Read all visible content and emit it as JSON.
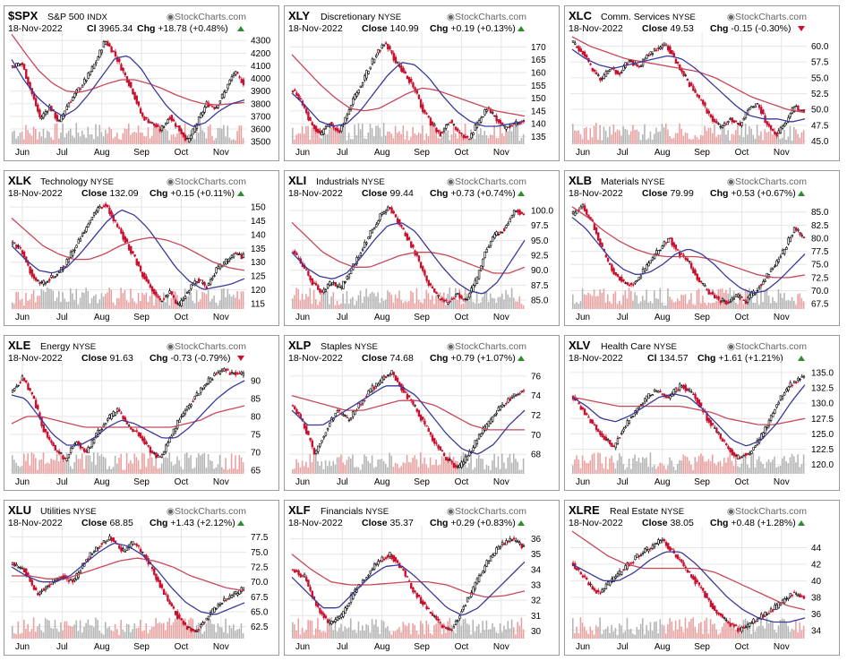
{
  "brand": "StockCharts.com",
  "colors": {
    "up_candle": "#000000",
    "down_candle": "#c8102e",
    "ma_fast": "#3a3a9a",
    "ma_slow": "#c8485a",
    "volume_up": "#b4b4b4",
    "volume_down": "#e8a0a0",
    "gridline": "#e6e6e6",
    "change_up": "#2e8b2e",
    "change_down": "#c8102e"
  },
  "chart_data": [
    {
      "type": "candlestick",
      "symbol": "$SPX",
      "name": "S&P 500",
      "exchange": "INDX",
      "date": "18-Nov-2022",
      "close_label": "Cl",
      "close": "3965.34",
      "change": "+18.78 (+0.48%)",
      "direction": "up",
      "x_months": [
        "Jun",
        "Jul",
        "Aug",
        "Sep",
        "Oct",
        "Nov"
      ],
      "y_ticks": [
        "4300",
        "4200",
        "4100",
        "4000",
        "3900",
        "3800",
        "3700",
        "3600",
        "3500"
      ],
      "ylim": [
        3480,
        4330
      ],
      "price_path": [
        4100,
        4120,
        3900,
        3680,
        3780,
        3650,
        3800,
        3900,
        4000,
        4130,
        4300,
        4200,
        4050,
        3900,
        3700,
        3650,
        3590,
        3700,
        3600,
        3500,
        3650,
        3800,
        3770,
        3900,
        4050,
        3965
      ],
      "ma_fast_path": [
        4150,
        3980,
        3850,
        3760,
        3700,
        3760,
        3880,
        4020,
        4160,
        4180,
        4080,
        3920,
        3780,
        3680,
        3620,
        3650,
        3740,
        3800,
        3830
      ],
      "ma_slow_path": [
        4350,
        4200,
        4060,
        3960,
        3900,
        3890,
        3920,
        3960,
        3990,
        3990,
        3960,
        3920,
        3870,
        3830,
        3800,
        3790,
        3800,
        3810
      ]
    },
    {
      "type": "candlestick",
      "symbol": "XLY",
      "name": "Discretionary",
      "exchange": "NYSE",
      "date": "18-Nov-2022",
      "close_label": "Close",
      "close": "140.99",
      "change": "+0.19 (+0.13%)",
      "direction": "up",
      "x_months": [
        "Jun",
        "Jul",
        "Aug",
        "Sep",
        "Oct",
        "Nov"
      ],
      "y_ticks": [
        "170",
        "165",
        "160",
        "155",
        "150",
        "145",
        "140",
        "135"
      ],
      "ylim": [
        132,
        174
      ],
      "price_path": [
        153,
        148,
        140,
        136,
        140,
        137,
        145,
        153,
        160,
        167,
        172,
        165,
        160,
        155,
        146,
        140,
        136,
        141,
        136,
        134,
        140,
        146,
        142,
        138,
        140,
        141
      ],
      "ma_fast_path": [
        152,
        147,
        141,
        139,
        140,
        145,
        152,
        159,
        164,
        163,
        158,
        151,
        145,
        141,
        139,
        139,
        140,
        141
      ],
      "ma_slow_path": [
        167,
        161,
        155,
        150,
        146,
        145,
        146,
        149,
        152,
        154,
        153,
        151,
        149,
        147,
        145,
        144,
        143
      ]
    },
    {
      "type": "candlestick",
      "symbol": "XLC",
      "name": "Comm. Services",
      "exchange": "NYSE",
      "date": "18-Nov-2022",
      "close_label": "Close",
      "close": "49.53",
      "change": "-0.15 (-0.30%)",
      "direction": "down",
      "x_months": [
        "Jun",
        "Jul",
        "Aug",
        "Sep",
        "Oct",
        "Nov"
      ],
      "y_ticks": [
        "60.0",
        "57.5",
        "55.0",
        "52.5",
        "50.0",
        "47.5",
        "45.0"
      ],
      "ylim": [
        44.5,
        61.5
      ],
      "price_path": [
        60.5,
        59.0,
        56.5,
        54.5,
        56.5,
        55.5,
        58.0,
        56.5,
        58.5,
        59.5,
        60.5,
        58.0,
        55.5,
        53.0,
        51.0,
        48.5,
        47.0,
        48.5,
        47.5,
        50.0,
        51.0,
        47.5,
        46.0,
        48.0,
        50.5,
        49.5
      ],
      "ma_fast_path": [
        59.5,
        58.0,
        57.0,
        56.5,
        57.0,
        57.5,
        58.0,
        58.5,
        58.0,
        56.5,
        54.5,
        52.5,
        50.5,
        49.0,
        48.5,
        48.5,
        48.0,
        48.5
      ],
      "ma_slow_path": [
        61.5,
        60.0,
        59.0,
        58.0,
        57.5,
        57.0,
        56.5,
        56.0,
        55.0,
        53.5,
        52.0,
        51.0,
        50.0,
        49.5
      ]
    },
    {
      "type": "candlestick",
      "symbol": "XLK",
      "name": "Technology",
      "exchange": "NYSE",
      "date": "18-Nov-2022",
      "close_label": "Close",
      "close": "132.09",
      "change": "+0.15 (+0.11%)",
      "direction": "up",
      "x_months": [
        "Jun",
        "Jul",
        "Aug",
        "Sep",
        "Oct",
        "Nov"
      ],
      "y_ticks": [
        "150",
        "145",
        "140",
        "135",
        "130",
        "125",
        "120",
        "115"
      ],
      "ylim": [
        113,
        152
      ],
      "price_path": [
        137,
        134,
        126,
        122,
        124,
        126,
        131,
        137,
        143,
        149,
        151,
        145,
        139,
        133,
        126,
        121,
        116,
        119,
        114,
        120,
        124,
        121,
        127,
        130,
        133,
        132
      ],
      "ma_fast_path": [
        136,
        131,
        127,
        126,
        128,
        133,
        139,
        145,
        149,
        147,
        142,
        135,
        128,
        123,
        120,
        121,
        122,
        124
      ],
      "ma_slow_path": [
        146,
        141,
        136,
        133,
        131,
        131,
        133,
        136,
        138,
        139,
        138,
        136,
        133,
        130,
        128,
        127
      ]
    },
    {
      "type": "candlestick",
      "symbol": "XLI",
      "name": "Industrials",
      "exchange": "NYSE",
      "date": "18-Nov-2022",
      "close_label": "Close",
      "close": "99.44",
      "change": "+0.73 (+0.74%)",
      "direction": "up",
      "x_months": [
        "Jun",
        "Jul",
        "Aug",
        "Sep",
        "Oct",
        "Nov"
      ],
      "y_ticks": [
        "100.0",
        "97.5",
        "95.0",
        "92.5",
        "90.0",
        "87.5",
        "85.0"
      ],
      "ylim": [
        83.5,
        101.5
      ],
      "price_path": [
        93.0,
        91.0,
        88.0,
        86.0,
        88.0,
        87.0,
        90.0,
        93.0,
        96.0,
        99.0,
        100.5,
        98.0,
        95.0,
        92.0,
        88.0,
        85.5,
        84.5,
        86.0,
        85.0,
        88.0,
        93.0,
        96.0,
        97.0,
        100.0,
        99.5
      ],
      "ma_fast_path": [
        93.0,
        90.5,
        89.0,
        88.5,
        89.5,
        92.0,
        95.0,
        97.5,
        98.0,
        96.5,
        93.5,
        90.5,
        88.0,
        86.5,
        86.0,
        88.0,
        91.5,
        95.0
      ],
      "ma_slow_path": [
        98.0,
        95.5,
        93.0,
        91.5,
        90.5,
        90.5,
        91.5,
        92.5,
        93.0,
        93.0,
        92.5,
        91.5,
        90.5,
        89.5,
        89.5,
        90.5
      ]
    },
    {
      "type": "candlestick",
      "symbol": "XLB",
      "name": "Materials",
      "exchange": "NYSE",
      "date": "18-Nov-2022",
      "close_label": "Close",
      "close": "79.99",
      "change": "+0.53 (+0.67%)",
      "direction": "up",
      "x_months": [
        "Jun",
        "Jul",
        "Aug",
        "Sep",
        "Oct",
        "Nov"
      ],
      "y_ticks": [
        "85.0",
        "82.5",
        "80.0",
        "77.5",
        "75.0",
        "72.5",
        "70.0",
        "67.5"
      ],
      "ylim": [
        66.5,
        87.0
      ],
      "price_path": [
        84.5,
        86.0,
        83.0,
        78.0,
        74.0,
        72.0,
        71.0,
        73.0,
        75.5,
        78.0,
        80.0,
        77.0,
        75.5,
        72.0,
        70.0,
        68.5,
        67.5,
        69.0,
        68.0,
        70.0,
        72.5,
        75.0,
        78.0,
        82.0,
        80.0
      ],
      "ma_fast_path": [
        84.0,
        82.0,
        79.0,
        76.0,
        74.0,
        73.0,
        73.5,
        75.0,
        77.0,
        78.0,
        77.0,
        75.0,
        72.5,
        70.5,
        69.5,
        70.0,
        72.0,
        74.5,
        77.0
      ],
      "ma_slow_path": [
        86.0,
        84.0,
        81.5,
        79.5,
        78.0,
        77.0,
        76.5,
        76.5,
        76.5,
        76.0,
        75.0,
        74.0,
        73.0,
        72.5,
        72.5,
        73.0
      ]
    },
    {
      "type": "candlestick",
      "symbol": "XLE",
      "name": "Energy",
      "exchange": "NYSE",
      "date": "18-Nov-2022",
      "close_label": "Close",
      "close": "91.63",
      "change": "-0.73 (-0.79%)",
      "direction": "down",
      "x_months": [
        "Jun",
        "Jul",
        "Aug",
        "Sep",
        "Oct",
        "Nov"
      ],
      "y_ticks": [
        "90",
        "85",
        "80",
        "75",
        "70",
        "65"
      ],
      "ylim": [
        64,
        94
      ],
      "price_path": [
        87,
        91,
        85,
        76,
        71,
        68,
        73,
        70,
        75,
        79,
        82,
        77,
        75,
        71,
        68,
        74,
        80,
        84,
        88,
        91,
        93,
        92,
        91.6
      ],
      "ma_fast_path": [
        86,
        85,
        80,
        75,
        72,
        72,
        74,
        77,
        79,
        78,
        76,
        74,
        74,
        77,
        81,
        85,
        88,
        90
      ],
      "ma_slow_path": [
        78,
        80,
        80,
        79,
        78,
        77,
        77,
        77,
        77,
        77,
        77,
        77,
        78,
        79,
        81,
        82,
        83
      ]
    },
    {
      "type": "candlestick",
      "symbol": "XLP",
      "name": "Staples",
      "exchange": "NYSE",
      "date": "18-Nov-2022",
      "close_label": "Close",
      "close": "74.68",
      "change": "+0.79 (+1.07%)",
      "direction": "up",
      "x_months": [
        "Jun",
        "Jul",
        "Aug",
        "Sep",
        "Oct",
        "Nov"
      ],
      "y_ticks": [
        "76",
        "74",
        "72",
        "70",
        "68"
      ],
      "ylim": [
        66.0,
        77.0
      ],
      "price_path": [
        73.0,
        71.0,
        68.0,
        70.5,
        72.5,
        71.5,
        73.0,
        74.5,
        75.5,
        76.5,
        74.5,
        73.0,
        71.0,
        69.0,
        67.5,
        66.5,
        68.0,
        70.0,
        71.5,
        73.0,
        74.0,
        74.7
      ],
      "ma_fast_path": [
        72.5,
        71.0,
        71.0,
        72.0,
        73.0,
        74.0,
        75.0,
        75.0,
        74.0,
        72.0,
        70.0,
        68.5,
        68.0,
        69.0,
        71.0,
        72.5
      ],
      "ma_slow_path": [
        74.0,
        73.5,
        73.0,
        72.5,
        72.5,
        73.0,
        73.5,
        73.5,
        73.0,
        72.0,
        71.0,
        70.5,
        70.5,
        70.5
      ]
    },
    {
      "type": "candlestick",
      "symbol": "XLV",
      "name": "Health Care",
      "exchange": "NYSE",
      "date": "18-Nov-2022",
      "close_label": "Cl",
      "close": "134.57",
      "change": "+1.61 (+1.21%)",
      "direction": "up",
      "x_months": [
        "Jun",
        "Jul",
        "Aug",
        "Sep",
        "Oct",
        "Nov"
      ],
      "y_ticks": [
        "135.0",
        "132.5",
        "130.0",
        "127.5",
        "125.0",
        "122.5",
        "120.0"
      ],
      "ylim": [
        118.5,
        136.0
      ],
      "price_path": [
        131.0,
        128.0,
        125.0,
        123.0,
        127.0,
        130.0,
        132.0,
        131.0,
        133.0,
        131.0,
        127.0,
        124.0,
        121.0,
        122.0,
        125.0,
        130.0,
        133.0,
        134.5
      ],
      "ma_fast_path": [
        131.0,
        129.5,
        127.5,
        127.0,
        128.0,
        129.5,
        131.0,
        131.5,
        131.0,
        129.0,
        126.5,
        124.0,
        123.0,
        124.0,
        126.5,
        130.0,
        133.0
      ],
      "ma_slow_path": [
        131.0,
        130.5,
        130.0,
        129.5,
        129.5,
        129.5,
        129.5,
        129.5,
        129.0,
        128.5,
        127.5,
        127.0,
        126.5,
        126.5,
        127.0,
        127.5
      ]
    },
    {
      "type": "candlestick",
      "symbol": "XLU",
      "name": "Utilities",
      "exchange": "NYSE",
      "date": "18-Nov-2022",
      "close_label": "Close",
      "close": "68.85",
      "change": "+1.43 (+2.12%)",
      "direction": "up",
      "x_months": [
        "Jun",
        "Jul",
        "Aug",
        "Sep",
        "Oct",
        "Nov"
      ],
      "y_ticks": [
        "77.5",
        "75.0",
        "72.5",
        "70.0",
        "67.5",
        "65.0",
        "62.5"
      ],
      "ylim": [
        60.5,
        78.5
      ],
      "price_path": [
        73.0,
        72.0,
        68.0,
        69.5,
        71.0,
        70.0,
        73.5,
        76.0,
        77.5,
        75.0,
        76.5,
        74.0,
        70.0,
        66.0,
        63.0,
        61.5,
        64.0,
        66.5,
        67.5,
        68.9
      ],
      "ma_fast_path": [
        72.5,
        71.0,
        70.0,
        70.0,
        71.0,
        73.0,
        75.0,
        76.5,
        76.0,
        74.5,
        72.0,
        69.0,
        66.5,
        65.0,
        64.5,
        65.5,
        66.5
      ],
      "ma_slow_path": [
        71.0,
        71.0,
        70.5,
        70.5,
        71.5,
        72.5,
        73.5,
        74.0,
        73.5,
        72.5,
        71.0,
        70.0,
        69.0,
        68.5
      ]
    },
    {
      "type": "candlestick",
      "symbol": "XLF",
      "name": "Financials",
      "exchange": "NYSE",
      "date": "18-Nov-2022",
      "close_label": "Close",
      "close": "35.37",
      "change": "+0.29 (+0.83%)",
      "direction": "up",
      "x_months": [
        "Jun",
        "Jul",
        "Aug",
        "Sep",
        "Oct",
        "Nov"
      ],
      "y_ticks": [
        "36",
        "35",
        "34",
        "33",
        "32",
        "31",
        "30"
      ],
      "ylim": [
        29.5,
        36.5
      ],
      "price_path": [
        34.0,
        33.5,
        31.5,
        30.5,
        31.0,
        32.5,
        33.5,
        34.5,
        35.0,
        34.0,
        32.5,
        31.5,
        30.5,
        30.0,
        31.5,
        33.0,
        34.5,
        35.5,
        36.0,
        35.4
      ],
      "ma_fast_path": [
        33.5,
        32.5,
        31.5,
        31.5,
        32.5,
        33.5,
        34.2,
        34.3,
        33.5,
        32.5,
        31.5,
        31.0,
        31.5,
        32.5,
        33.5,
        34.5
      ],
      "ma_slow_path": [
        35.0,
        34.0,
        33.2,
        33.0,
        33.0,
        33.1,
        33.2,
        33.2,
        33.0,
        32.5,
        32.2,
        32.3,
        32.6
      ]
    },
    {
      "type": "candlestick",
      "symbol": "XLRE",
      "name": "Real Estate",
      "exchange": "NYSE",
      "date": "18-Nov-2022",
      "close_label": "Close",
      "close": "38.05",
      "change": "+0.48 (+1.28%)",
      "direction": "up",
      "x_months": [
        "Jun",
        "Jul",
        "Aug",
        "Sep",
        "Oct",
        "Nov"
      ],
      "y_ticks": [
        "44",
        "42",
        "40",
        "38",
        "36",
        "34"
      ],
      "ylim": [
        33.0,
        46.0
      ],
      "price_path": [
        42.0,
        40.0,
        38.5,
        40.0,
        41.5,
        43.0,
        44.0,
        45.0,
        43.0,
        41.0,
        39.0,
        36.5,
        35.0,
        34.0,
        35.0,
        36.0,
        37.0,
        38.5,
        38.0
      ],
      "ma_fast_path": [
        42.0,
        41.0,
        40.0,
        40.0,
        41.0,
        42.5,
        43.5,
        43.5,
        42.0,
        40.0,
        38.0,
        36.5,
        35.5,
        35.0,
        35.0,
        35.5
      ],
      "ma_slow_path": [
        46.0,
        44.5,
        43.0,
        42.0,
        41.5,
        41.5,
        41.5,
        41.5,
        41.0,
        40.0,
        39.0,
        38.0,
        37.0,
        36.5
      ]
    }
  ]
}
